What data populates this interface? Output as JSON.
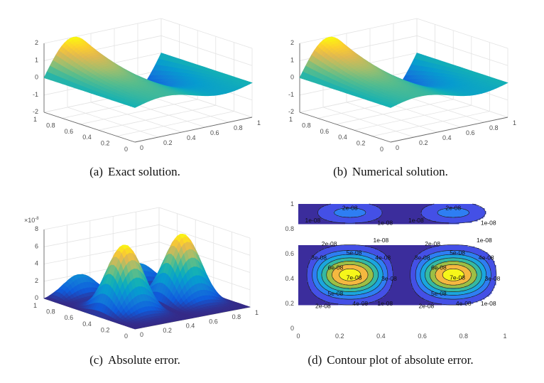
{
  "figure": {
    "captions": [
      {
        "label": "(a)",
        "text": "Exact solution."
      },
      {
        "label": "(b)",
        "text": "Numerical solution."
      },
      {
        "label": "(c)",
        "text": "Absolute error."
      },
      {
        "label": "(d)",
        "text": "Contour plot of absolute error."
      }
    ]
  },
  "chart_data": [
    {
      "type": "surface",
      "colormap": "parula",
      "grid": true,
      "xlim": [
        0,
        1
      ],
      "ylim": [
        0,
        1
      ],
      "zlim": [
        -2,
        2
      ],
      "x_ticks": [
        "0",
        "0.2",
        "0.4",
        "0.6",
        "0.8",
        "1"
      ],
      "y_ticks": [
        "0",
        "0.2",
        "0.4",
        "0.6",
        "0.8",
        "1"
      ],
      "z_ticks": [
        "-2",
        "-1",
        "0",
        "1",
        "2"
      ],
      "peak": {
        "x": 0.25,
        "y": 1,
        "z": 2
      },
      "trough": {
        "x": 0.75,
        "y": 1,
        "z": -2
      }
    },
    {
      "type": "surface",
      "colormap": "parula",
      "grid": true,
      "xlim": [
        0,
        1
      ],
      "ylim": [
        0,
        1
      ],
      "zlim": [
        -2,
        2
      ],
      "x_ticks": [
        "0",
        "0.2",
        "0.4",
        "0.6",
        "0.8",
        "1"
      ],
      "y_ticks": [
        "0",
        "0.2",
        "0.4",
        "0.6",
        "0.8",
        "1"
      ],
      "z_ticks": [
        "-2",
        "-1",
        "0",
        "1",
        "2"
      ],
      "peak": {
        "x": 0.25,
        "y": 1,
        "z": 2
      },
      "trough": {
        "x": 0.75,
        "y": 1,
        "z": -2
      }
    },
    {
      "type": "surface",
      "colormap": "parula",
      "grid": true,
      "xlim": [
        0,
        1
      ],
      "ylim": [
        0,
        1
      ],
      "zlim": [
        0,
        8e-08
      ],
      "x_ticks": [
        "0",
        "0.2",
        "0.4",
        "0.6",
        "0.8",
        "1"
      ],
      "y_ticks": [
        "0",
        "0.2",
        "0.4",
        "0.6",
        "0.8",
        "1"
      ],
      "z_ticks": [
        "0",
        "2",
        "4",
        "6",
        "8"
      ],
      "z_multiplier": {
        "base": "×10",
        "exponent": "-8"
      },
      "peaks": [
        {
          "x": 0.25,
          "y": 0.43,
          "value": 7.6e-08
        },
        {
          "x": 0.75,
          "y": 0.43,
          "value": 7.6e-08
        },
        {
          "x": 0.25,
          "y": 0.93,
          "value": 2.4e-08
        },
        {
          "x": 0.75,
          "y": 0.93,
          "value": 2.4e-08
        }
      ]
    },
    {
      "type": "contour",
      "filled": true,
      "xlim": [
        0,
        1
      ],
      "ylim": [
        0,
        1
      ],
      "x_ticks": [
        "0",
        "0.2",
        "0.4",
        "0.6",
        "0.8",
        "1"
      ],
      "y_ticks": [
        "0",
        "0.2",
        "0.4",
        "0.6",
        "0.8",
        "1"
      ],
      "levels": [
        1e-08,
        2e-08,
        3e-08,
        4e-08,
        5e-08,
        6e-08,
        7e-08
      ],
      "level_labels": [
        "1e-08",
        "2e-08",
        "3e-08",
        "4e-08",
        "5e-08",
        "6e-08",
        "7e-08"
      ],
      "colors": [
        "#3b2d9c",
        "#4450e6",
        "#2e7ef3",
        "#1aa6de",
        "#35b9a2",
        "#9cbf45",
        "#f5b840",
        "#f6f61a"
      ],
      "peaks": [
        {
          "x": 0.25,
          "y": 0.43,
          "value": 7.6e-08
        },
        {
          "x": 0.75,
          "y": 0.43,
          "value": 7.6e-08
        },
        {
          "x": 0.25,
          "y": 0.93,
          "value": 2.4e-08
        },
        {
          "x": 0.75,
          "y": 0.93,
          "value": 2.4e-08
        }
      ]
    }
  ]
}
